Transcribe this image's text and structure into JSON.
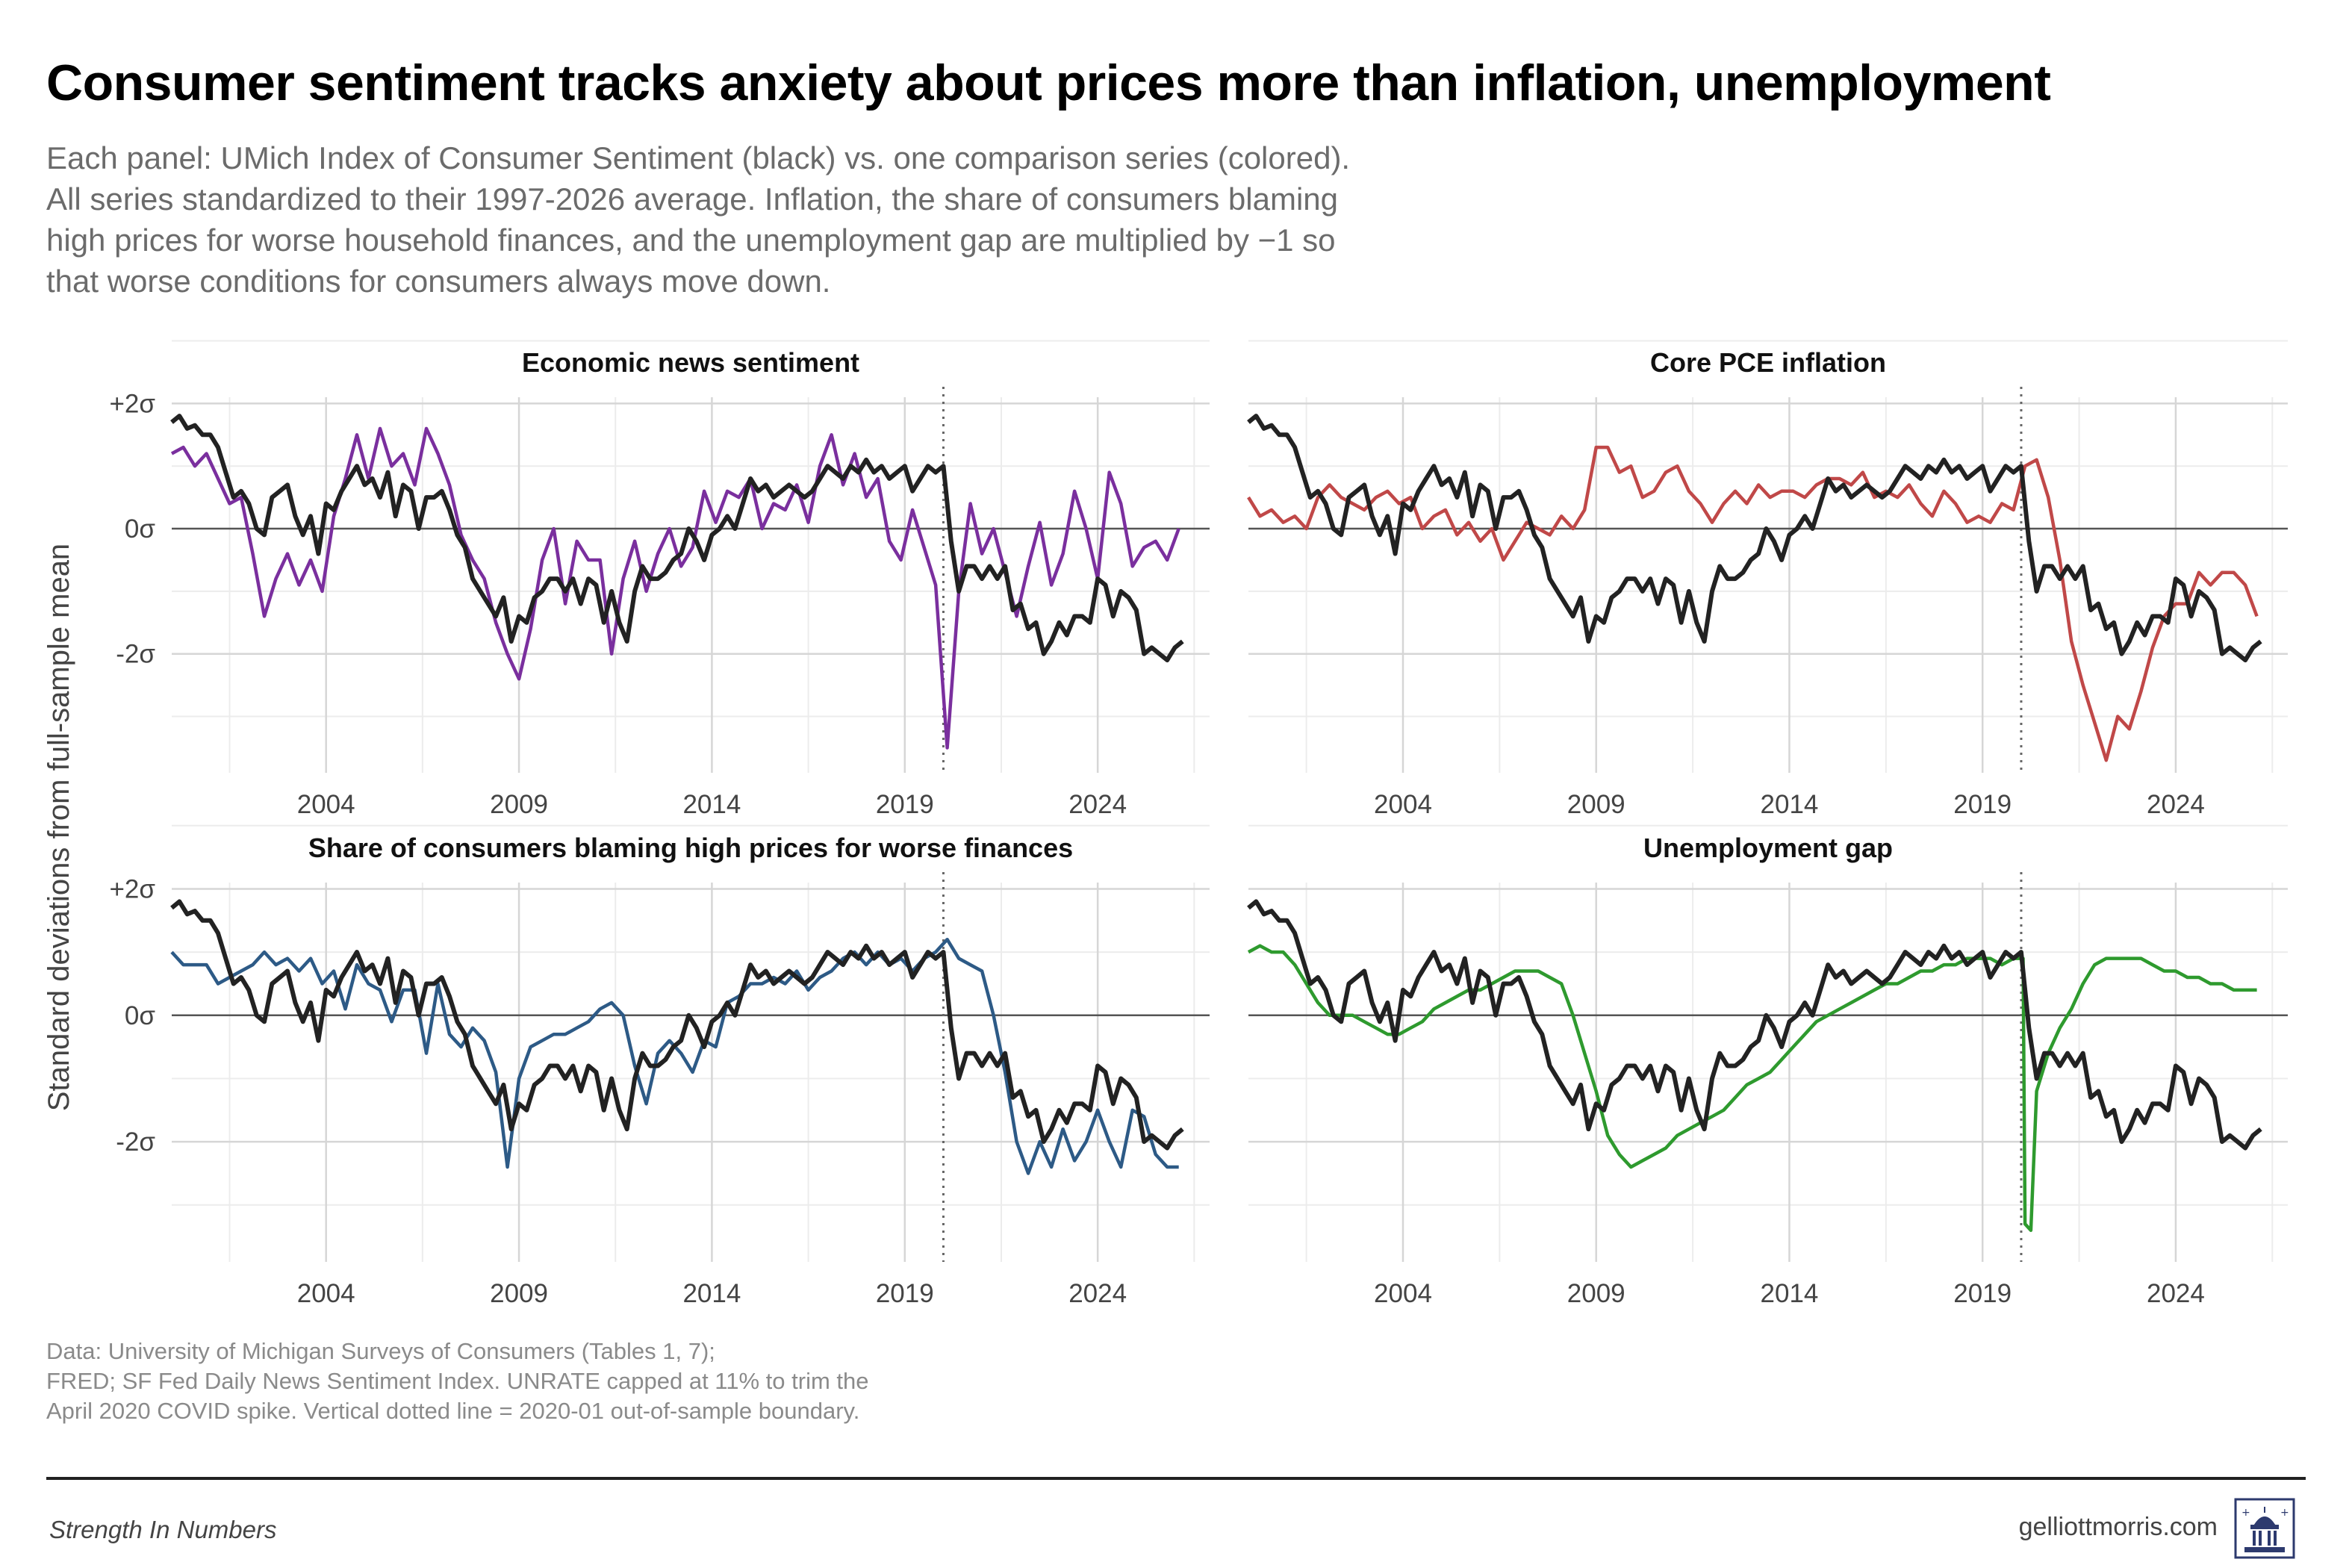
{
  "title": "Consumer sentiment tracks anxiety about prices more than inflation, unemployment",
  "subtitle_lines": [
    "Each panel: UMich Index of Consumer Sentiment (black) vs. one comparison series (colored).",
    "All series standardized to their 1997-2026 average. Inflation, the share of consumers blaming",
    "high prices for worse household finances, and the unemployment gap are multiplied by −1 so",
    "that worse conditions for consumers always move down."
  ],
  "caption_lines": [
    "Data: University of Michigan Surveys of Consumers (Tables 1, 7);",
    "FRED; SF Fed Daily News Sentiment Index. UNRATE capped at 11% to trim the",
    "April 2020 COVID spike. Vertical dotted line = 2020-01 out-of-sample boundary."
  ],
  "footer": {
    "brand": "Strength In Numbers",
    "site": "gelliottmorris.com"
  },
  "colors": {
    "sentiment": "#222222",
    "news": "#7a2f9e",
    "pce": "#c04848",
    "prices": "#2d5a86",
    "unemployment": "#2e9a2e"
  },
  "chart_data": {
    "type": "line",
    "ylabel": "Standard deviations from full-sample mean",
    "y_ticks": [
      2,
      0,
      -2
    ],
    "y_tick_labels": [
      "+2σ",
      "0σ",
      "-2σ"
    ],
    "ylim": [
      -3.9,
      2.1
    ],
    "xlim": [
      2000.0,
      2026.9
    ],
    "x_ticks": [
      2004,
      2009,
      2014,
      2019,
      2024
    ],
    "x_tick_labels": [
      "2004",
      "2009",
      "2014",
      "2019",
      "2024"
    ],
    "vline_year": 2020.0,
    "grid": true,
    "sentiment": {
      "x": [
        2000.0,
        2000.2,
        2000.4,
        2000.6,
        2000.8,
        2001.0,
        2001.2,
        2001.4,
        2001.6,
        2001.8,
        2002.0,
        2002.2,
        2002.4,
        2002.6,
        2002.8,
        2003.0,
        2003.2,
        2003.4,
        2003.6,
        2003.8,
        2004.0,
        2004.2,
        2004.4,
        2004.6,
        2004.8,
        2005.0,
        2005.2,
        2005.4,
        2005.6,
        2005.8,
        2006.0,
        2006.2,
        2006.4,
        2006.6,
        2006.8,
        2007.0,
        2007.2,
        2007.4,
        2007.6,
        2007.8,
        2008.0,
        2008.2,
        2008.4,
        2008.6,
        2008.8,
        2009.0,
        2009.2,
        2009.4,
        2009.6,
        2009.8,
        2010.0,
        2010.2,
        2010.4,
        2010.6,
        2010.8,
        2011.0,
        2011.2,
        2011.4,
        2011.6,
        2011.8,
        2012.0,
        2012.2,
        2012.4,
        2012.6,
        2012.8,
        2013.0,
        2013.2,
        2013.4,
        2013.6,
        2013.8,
        2014.0,
        2014.2,
        2014.4,
        2014.6,
        2014.8,
        2015.0,
        2015.2,
        2015.4,
        2015.6,
        2015.8,
        2016.0,
        2016.2,
        2016.4,
        2016.6,
        2016.8,
        2017.0,
        2017.2,
        2017.4,
        2017.6,
        2017.8,
        2018.0,
        2018.2,
        2018.4,
        2018.6,
        2018.8,
        2019.0,
        2019.2,
        2019.4,
        2019.6,
        2019.8,
        2020.0,
        2020.2,
        2020.4,
        2020.6,
        2020.8,
        2021.0,
        2021.2,
        2021.4,
        2021.6,
        2021.8,
        2022.0,
        2022.2,
        2022.4,
        2022.6,
        2022.8,
        2023.0,
        2023.2,
        2023.4,
        2023.6,
        2023.8,
        2024.0,
        2024.2,
        2024.4,
        2024.6,
        2024.8,
        2025.0,
        2025.2,
        2025.4,
        2025.6,
        2025.8,
        2026.0,
        2026.2
      ],
      "y": [
        1.7,
        1.8,
        1.6,
        1.65,
        1.5,
        1.5,
        1.3,
        0.9,
        0.5,
        0.6,
        0.4,
        0.0,
        -0.1,
        0.5,
        0.6,
        0.7,
        0.2,
        -0.1,
        0.2,
        -0.4,
        0.4,
        0.3,
        0.6,
        0.8,
        1.0,
        0.7,
        0.8,
        0.5,
        0.9,
        0.2,
        0.7,
        0.6,
        0.0,
        0.5,
        0.5,
        0.6,
        0.3,
        -0.1,
        -0.3,
        -0.8,
        -1.0,
        -1.2,
        -1.4,
        -1.1,
        -1.8,
        -1.4,
        -1.5,
        -1.1,
        -1.0,
        -0.8,
        -0.8,
        -1.0,
        -0.8,
        -1.2,
        -0.8,
        -0.9,
        -1.5,
        -1.0,
        -1.5,
        -1.8,
        -1.0,
        -0.6,
        -0.8,
        -0.8,
        -0.7,
        -0.5,
        -0.4,
        0.0,
        -0.2,
        -0.5,
        -0.1,
        0.0,
        0.2,
        0.0,
        0.4,
        0.8,
        0.6,
        0.7,
        0.5,
        0.6,
        0.7,
        0.6,
        0.5,
        0.6,
        0.8,
        1.0,
        0.9,
        0.8,
        1.0,
        0.9,
        1.1,
        0.9,
        1.0,
        0.8,
        0.9,
        1.0,
        0.6,
        0.8,
        1.0,
        0.9,
        1.0,
        -0.2,
        -1.0,
        -0.6,
        -0.6,
        -0.8,
        -0.6,
        -0.8,
        -0.6,
        -1.3,
        -1.2,
        -1.6,
        -1.5,
        -2.0,
        -1.8,
        -1.5,
        -1.7,
        -1.4,
        -1.4,
        -1.5,
        -0.8,
        -0.9,
        -1.4,
        -1.0,
        -1.1,
        -1.3,
        -2.0,
        -1.9,
        -2.0,
        -2.1,
        -1.9,
        -1.8
      ],
      "x_note": "monthly average approximated"
    },
    "panels": [
      {
        "title": "Economic news sentiment",
        "series_key": "news",
        "x": [
          2000.0,
          2000.3,
          2000.6,
          2000.9,
          2001.2,
          2001.5,
          2001.8,
          2002.1,
          2002.4,
          2002.7,
          2003.0,
          2003.3,
          2003.6,
          2003.9,
          2004.2,
          2004.5,
          2004.8,
          2005.1,
          2005.4,
          2005.7,
          2006.0,
          2006.3,
          2006.6,
          2006.9,
          2007.2,
          2007.5,
          2007.8,
          2008.1,
          2008.4,
          2008.7,
          2009.0,
          2009.3,
          2009.6,
          2009.9,
          2010.2,
          2010.5,
          2010.8,
          2011.1,
          2011.4,
          2011.7,
          2012.0,
          2012.3,
          2012.6,
          2012.9,
          2013.2,
          2013.5,
          2013.8,
          2014.1,
          2014.4,
          2014.7,
          2015.0,
          2015.3,
          2015.6,
          2015.9,
          2016.2,
          2016.5,
          2016.8,
          2017.1,
          2017.4,
          2017.7,
          2018.0,
          2018.3,
          2018.6,
          2018.9,
          2019.2,
          2019.5,
          2019.8,
          2020.1,
          2020.4,
          2020.7,
          2021.0,
          2021.3,
          2021.6,
          2021.9,
          2022.2,
          2022.5,
          2022.8,
          2023.1,
          2023.4,
          2023.7,
          2024.0,
          2024.3,
          2024.6,
          2024.9,
          2025.2,
          2025.5,
          2025.8,
          2026.1
        ],
        "y": [
          1.2,
          1.3,
          1.0,
          1.2,
          0.8,
          0.4,
          0.5,
          -0.4,
          -1.4,
          -0.8,
          -0.4,
          -0.9,
          -0.5,
          -1.0,
          0.2,
          0.8,
          1.5,
          0.8,
          1.6,
          1.0,
          1.2,
          0.7,
          1.6,
          1.2,
          0.7,
          -0.1,
          -0.5,
          -0.8,
          -1.5,
          -2.0,
          -2.4,
          -1.6,
          -0.5,
          0.0,
          -1.2,
          -0.2,
          -0.5,
          -0.5,
          -2.0,
          -0.8,
          -0.2,
          -1.0,
          -0.4,
          0.0,
          -0.6,
          -0.3,
          0.6,
          0.1,
          0.6,
          0.5,
          0.8,
          0.0,
          0.4,
          0.3,
          0.7,
          0.1,
          1.0,
          1.5,
          0.7,
          1.2,
          0.5,
          0.8,
          -0.2,
          -0.5,
          0.3,
          -0.3,
          -0.9,
          -3.5,
          -1.0,
          0.4,
          -0.4,
          0.0,
          -0.7,
          -1.4,
          -0.6,
          0.1,
          -0.9,
          -0.4,
          0.6,
          0.0,
          -0.8,
          0.9,
          0.4,
          -0.6,
          -0.3,
          -0.2,
          -0.5,
          0.0
        ]
      },
      {
        "title": "Core PCE inflation",
        "series_key": "pce",
        "x": [
          2000.0,
          2000.3,
          2000.6,
          2000.9,
          2001.2,
          2001.5,
          2001.8,
          2002.1,
          2002.4,
          2002.7,
          2003.0,
          2003.3,
          2003.6,
          2003.9,
          2004.2,
          2004.5,
          2004.8,
          2005.1,
          2005.4,
          2005.7,
          2006.0,
          2006.3,
          2006.6,
          2006.9,
          2007.2,
          2007.5,
          2007.8,
          2008.1,
          2008.4,
          2008.7,
          2009.0,
          2009.3,
          2009.6,
          2009.9,
          2010.2,
          2010.5,
          2010.8,
          2011.1,
          2011.4,
          2011.7,
          2012.0,
          2012.3,
          2012.6,
          2012.9,
          2013.2,
          2013.5,
          2013.8,
          2014.1,
          2014.4,
          2014.7,
          2015.0,
          2015.3,
          2015.6,
          2015.9,
          2016.2,
          2016.5,
          2016.8,
          2017.1,
          2017.4,
          2017.7,
          2018.0,
          2018.3,
          2018.6,
          2018.9,
          2019.2,
          2019.5,
          2019.8,
          2020.1,
          2020.4,
          2020.7,
          2021.0,
          2021.3,
          2021.6,
          2021.9,
          2022.2,
          2022.5,
          2022.8,
          2023.1,
          2023.4,
          2023.7,
          2024.0,
          2024.3,
          2024.6,
          2024.9,
          2025.2,
          2025.5,
          2025.8,
          2026.1
        ],
        "y": [
          0.5,
          0.2,
          0.3,
          0.1,
          0.2,
          0.0,
          0.5,
          0.7,
          0.5,
          0.4,
          0.3,
          0.5,
          0.6,
          0.4,
          0.5,
          0.0,
          0.2,
          0.3,
          -0.1,
          0.1,
          -0.2,
          0.0,
          -0.5,
          -0.2,
          0.1,
          0.0,
          -0.1,
          0.2,
          0.0,
          0.3,
          1.3,
          1.3,
          0.9,
          1.0,
          0.5,
          0.6,
          0.9,
          1.0,
          0.6,
          0.4,
          0.1,
          0.4,
          0.6,
          0.4,
          0.7,
          0.5,
          0.6,
          0.6,
          0.5,
          0.7,
          0.8,
          0.8,
          0.7,
          0.9,
          0.5,
          0.6,
          0.5,
          0.7,
          0.4,
          0.2,
          0.6,
          0.4,
          0.1,
          0.2,
          0.1,
          0.4,
          0.3,
          1.0,
          1.1,
          0.5,
          -0.5,
          -1.8,
          -2.5,
          -3.1,
          -3.7,
          -3.0,
          -3.2,
          -2.6,
          -1.9,
          -1.4,
          -1.2,
          -1.2,
          -0.7,
          -0.9,
          -0.7,
          -0.7,
          -0.9,
          -1.4
        ]
      },
      {
        "title": "Share of consumers blaming high prices for worse finances",
        "series_key": "prices",
        "x": [
          2000.0,
          2000.3,
          2000.6,
          2000.9,
          2001.2,
          2001.5,
          2001.8,
          2002.1,
          2002.4,
          2002.7,
          2003.0,
          2003.3,
          2003.6,
          2003.9,
          2004.2,
          2004.5,
          2004.8,
          2005.1,
          2005.4,
          2005.7,
          2006.0,
          2006.3,
          2006.6,
          2006.9,
          2007.2,
          2007.5,
          2007.8,
          2008.1,
          2008.4,
          2008.7,
          2009.0,
          2009.3,
          2009.6,
          2009.9,
          2010.2,
          2010.5,
          2010.8,
          2011.1,
          2011.4,
          2011.7,
          2012.0,
          2012.3,
          2012.6,
          2012.9,
          2013.2,
          2013.5,
          2013.8,
          2014.1,
          2014.4,
          2014.7,
          2015.0,
          2015.3,
          2015.6,
          2015.9,
          2016.2,
          2016.5,
          2016.8,
          2017.1,
          2017.4,
          2017.7,
          2018.0,
          2018.3,
          2018.6,
          2018.9,
          2019.2,
          2019.5,
          2019.8,
          2020.1,
          2020.4,
          2020.7,
          2021.0,
          2021.3,
          2021.6,
          2021.9,
          2022.2,
          2022.5,
          2022.8,
          2023.1,
          2023.4,
          2023.7,
          2024.0,
          2024.3,
          2024.6,
          2024.9,
          2025.2,
          2025.5,
          2025.8,
          2026.1
        ],
        "y": [
          1.0,
          0.8,
          0.8,
          0.8,
          0.5,
          0.6,
          0.7,
          0.8,
          1.0,
          0.8,
          0.9,
          0.7,
          0.9,
          0.5,
          0.7,
          0.1,
          0.8,
          0.5,
          0.4,
          -0.1,
          0.4,
          0.4,
          -0.6,
          0.5,
          -0.3,
          -0.5,
          -0.2,
          -0.4,
          -0.9,
          -2.4,
          -1.0,
          -0.5,
          -0.4,
          -0.3,
          -0.3,
          -0.2,
          -0.1,
          0.1,
          0.2,
          0.0,
          -0.8,
          -1.4,
          -0.6,
          -0.4,
          -0.6,
          -0.9,
          -0.4,
          -0.5,
          0.2,
          0.3,
          0.5,
          0.5,
          0.6,
          0.5,
          0.7,
          0.4,
          0.6,
          0.7,
          0.9,
          1.0,
          0.8,
          1.0,
          0.8,
          0.9,
          0.7,
          0.9,
          1.0,
          1.2,
          0.9,
          0.8,
          0.7,
          0.0,
          -0.9,
          -2.0,
          -2.5,
          -2.0,
          -2.4,
          -1.8,
          -2.3,
          -2.0,
          -1.5,
          -2.0,
          -2.4,
          -1.5,
          -1.6,
          -2.2,
          -2.4,
          -2.4
        ]
      },
      {
        "title": "Unemployment gap",
        "series_key": "unemployment",
        "x": [
          2000.0,
          2000.3,
          2000.6,
          2000.9,
          2001.2,
          2001.5,
          2001.8,
          2002.1,
          2002.4,
          2002.7,
          2003.0,
          2003.3,
          2003.6,
          2003.9,
          2004.2,
          2004.5,
          2004.8,
          2005.1,
          2005.4,
          2005.7,
          2006.0,
          2006.3,
          2006.6,
          2006.9,
          2007.2,
          2007.5,
          2007.8,
          2008.1,
          2008.4,
          2008.7,
          2009.0,
          2009.3,
          2009.6,
          2009.9,
          2010.2,
          2010.5,
          2010.8,
          2011.1,
          2011.4,
          2011.7,
          2012.0,
          2012.3,
          2012.6,
          2012.9,
          2013.2,
          2013.5,
          2013.8,
          2014.1,
          2014.4,
          2014.7,
          2015.0,
          2015.3,
          2015.6,
          2015.9,
          2016.2,
          2016.5,
          2016.8,
          2017.1,
          2017.4,
          2017.7,
          2018.0,
          2018.3,
          2018.6,
          2018.9,
          2019.2,
          2019.5,
          2019.8,
          2020.05,
          2020.1,
          2020.25,
          2020.4,
          2020.7,
          2021.0,
          2021.3,
          2021.6,
          2021.9,
          2022.2,
          2022.5,
          2022.8,
          2023.1,
          2023.4,
          2023.7,
          2024.0,
          2024.3,
          2024.6,
          2024.9,
          2025.2,
          2025.5,
          2025.8,
          2026.1
        ],
        "y": [
          1.0,
          1.1,
          1.0,
          1.0,
          0.8,
          0.5,
          0.2,
          0.0,
          0.0,
          0.0,
          -0.1,
          -0.2,
          -0.3,
          -0.3,
          -0.2,
          -0.1,
          0.1,
          0.2,
          0.3,
          0.4,
          0.4,
          0.5,
          0.6,
          0.7,
          0.7,
          0.7,
          0.6,
          0.5,
          0.0,
          -0.6,
          -1.2,
          -1.9,
          -2.2,
          -2.4,
          -2.3,
          -2.2,
          -2.1,
          -1.9,
          -1.8,
          -1.7,
          -1.6,
          -1.5,
          -1.3,
          -1.1,
          -1.0,
          -0.9,
          -0.7,
          -0.5,
          -0.3,
          -0.1,
          0.0,
          0.1,
          0.2,
          0.3,
          0.4,
          0.5,
          0.5,
          0.6,
          0.7,
          0.7,
          0.8,
          0.8,
          0.9,
          0.9,
          0.9,
          0.8,
          0.9,
          0.9,
          -3.3,
          -3.4,
          -1.2,
          -0.6,
          -0.2,
          0.1,
          0.5,
          0.8,
          0.9,
          0.9,
          0.9,
          0.9,
          0.8,
          0.7,
          0.7,
          0.6,
          0.6,
          0.5,
          0.5,
          0.4,
          0.4,
          0.4
        ]
      }
    ]
  }
}
